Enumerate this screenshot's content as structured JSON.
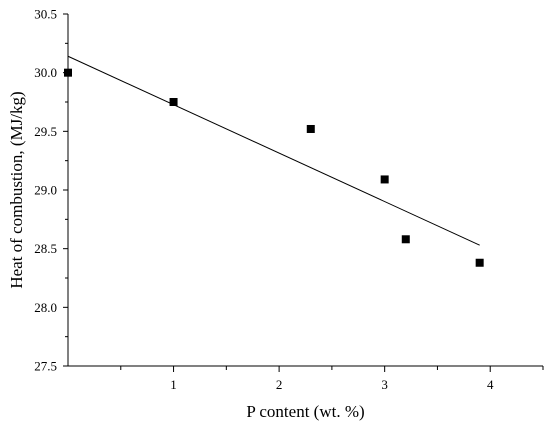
{
  "chart_data": {
    "type": "scatter",
    "xlabel": "P content (wt. %)",
    "ylabel": "Heat of combustion, (MJ/kg)",
    "xlim": [
      0,
      4.5
    ],
    "ylim": [
      27.5,
      30.5
    ],
    "x_ticks": [
      1,
      2,
      3,
      4
    ],
    "x_tick_labels": [
      "1",
      "2",
      "3",
      "4"
    ],
    "y_ticks": [
      27.5,
      28.0,
      28.5,
      29.0,
      29.5,
      30.0,
      30.5
    ],
    "y_tick_labels": [
      "27.5",
      "28.0",
      "28.5",
      "29.0",
      "29.5",
      "30.0",
      "30.5"
    ],
    "grid": false,
    "series": [
      {
        "marker": "square",
        "color": "#000000",
        "points": [
          {
            "x": 0.0,
            "y": 30.0
          },
          {
            "x": 1.0,
            "y": 29.75
          },
          {
            "x": 2.3,
            "y": 29.52
          },
          {
            "x": 3.0,
            "y": 29.09
          },
          {
            "x": 3.2,
            "y": 28.58
          },
          {
            "x": 3.9,
            "y": 28.38
          }
        ]
      }
    ],
    "trendline": {
      "type": "linear",
      "color": "#000000",
      "x_range": [
        0.0,
        3.9
      ],
      "y_values": [
        30.14,
        28.53
      ]
    }
  }
}
